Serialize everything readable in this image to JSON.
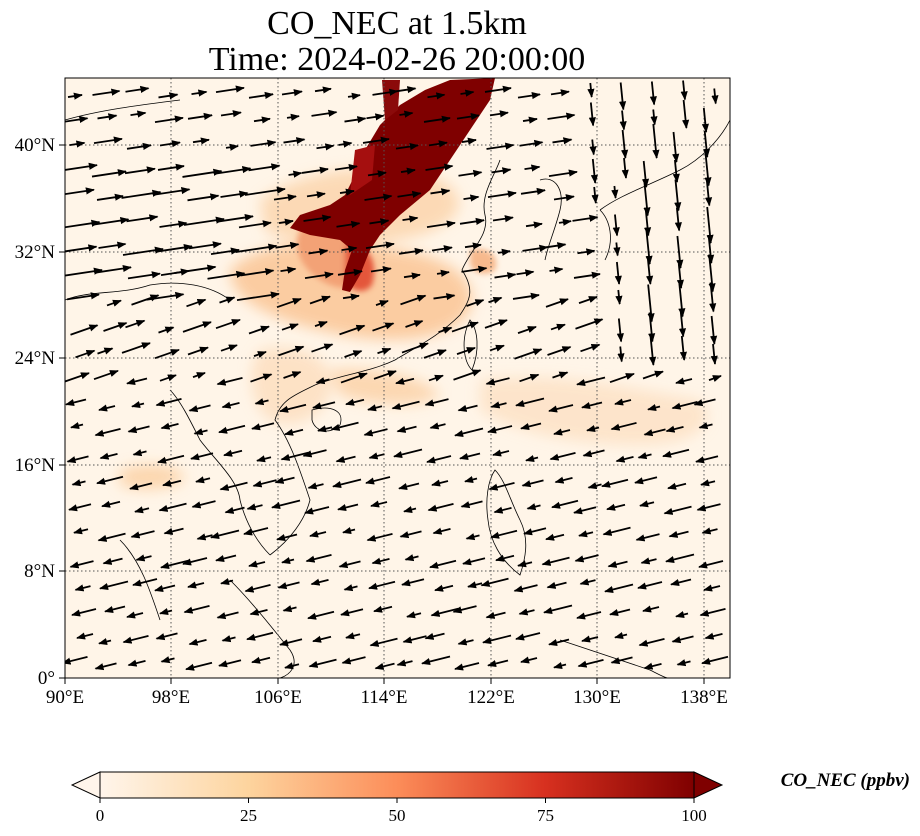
{
  "figure": {
    "title_line1": "CO_NEC at 1.5km",
    "title_line2": "Time: 2024-02-26 20:00:00"
  },
  "map": {
    "variable": "CO_NEC",
    "level": "1.5km",
    "lon_range": [
      90,
      140
    ],
    "lat_range": [
      0,
      45
    ],
    "lon_ticks": [
      "90°E",
      "98°E",
      "106°E",
      "114°E",
      "122°E",
      "130°E",
      "138°E"
    ],
    "lat_ticks": [
      "0°",
      "8°N",
      "16°N",
      "24°N",
      "32°N",
      "40°N"
    ],
    "gridlines": "dotted",
    "background_color": "#fff5e8",
    "features": [
      "coastlines",
      "country borders",
      "wind vectors"
    ]
  },
  "colorbar": {
    "label": "CO_NEC (ppbv)",
    "ticks": [
      "0",
      "25",
      "50",
      "75",
      "100"
    ],
    "range": [
      0,
      100
    ],
    "extend": "both",
    "colormap": [
      "#fff5eb",
      "#fdd49e",
      "#fc8d59",
      "#d7301f",
      "#7f0000"
    ]
  }
}
